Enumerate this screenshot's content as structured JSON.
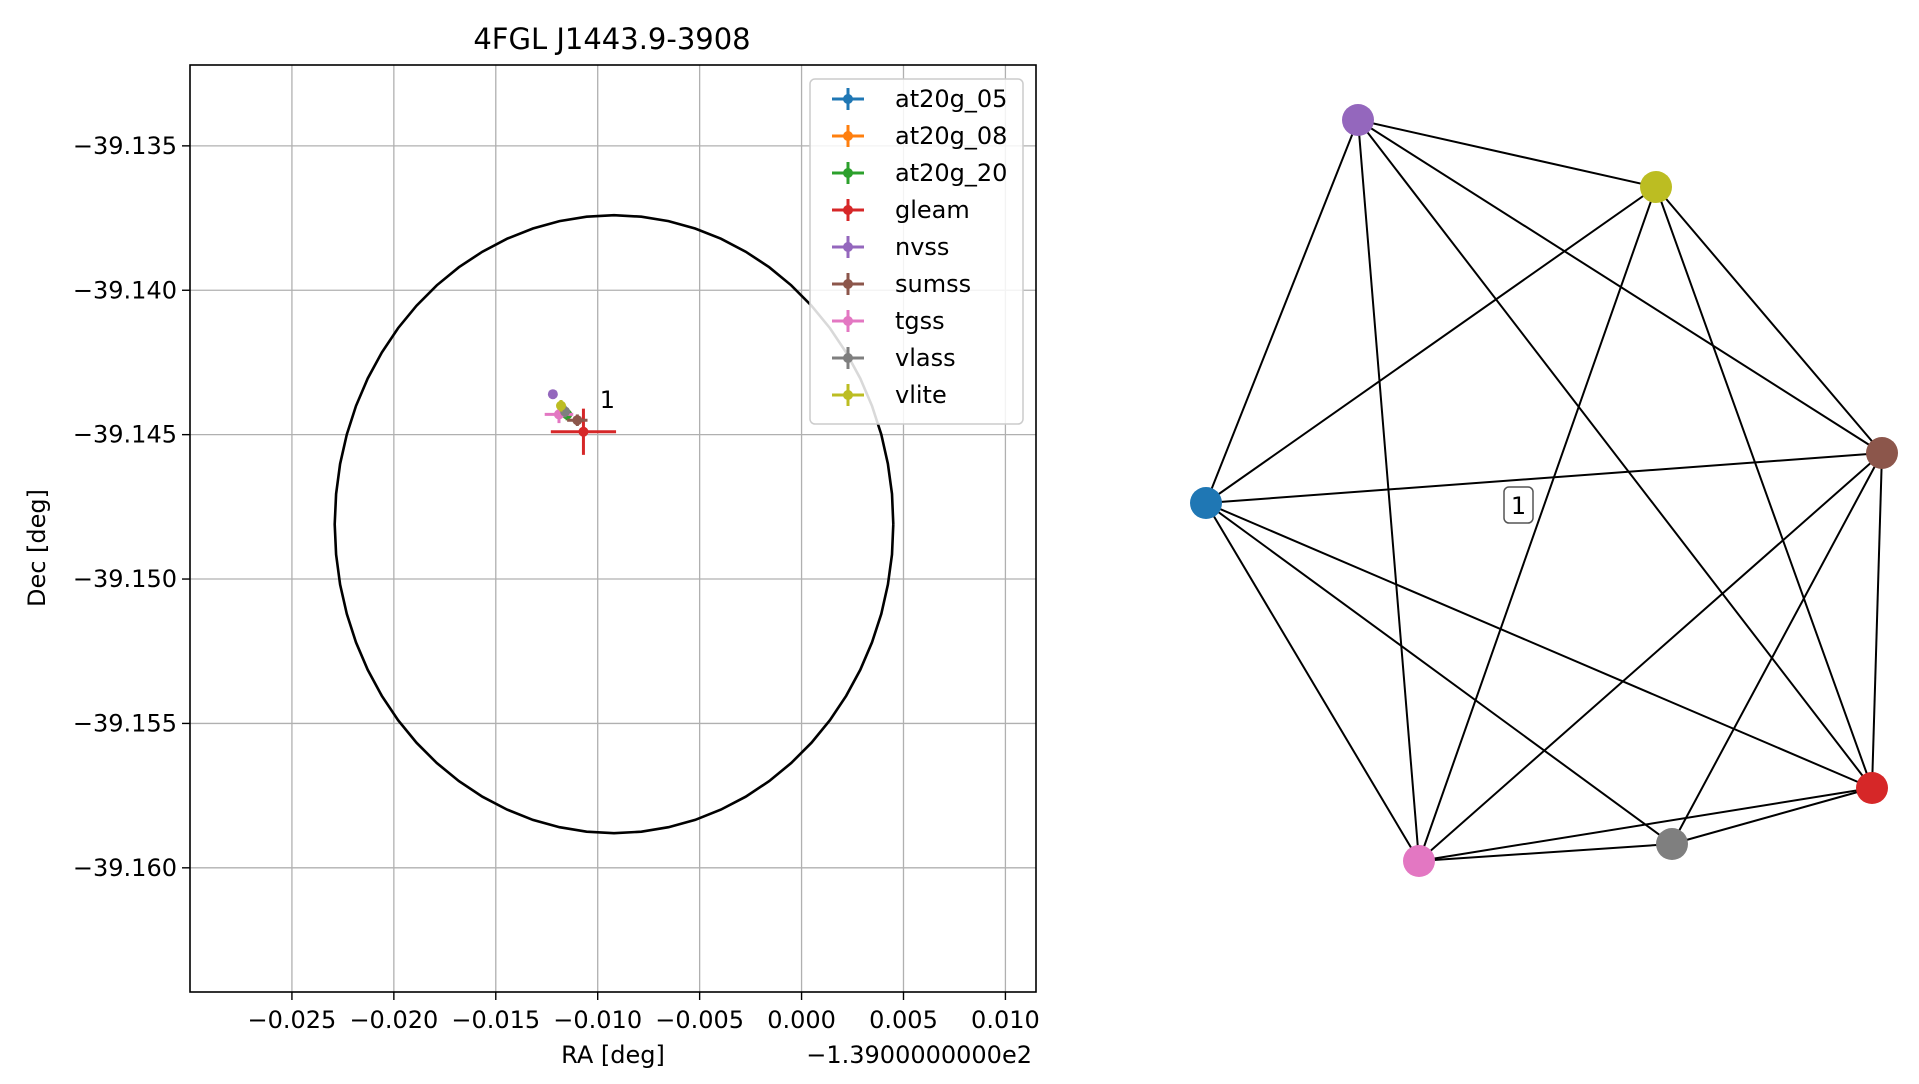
{
  "chart_data": [
    {
      "type": "scatter",
      "title": "4FGL J1443.9-3908",
      "xlabel": "RA [deg]",
      "ylabel": "Dec [deg]",
      "x_offset_label": "−1.3900000000e2",
      "xlim": [
        -0.03,
        0.0115
      ],
      "ylim": [
        -39.1643,
        -39.1322
      ],
      "x_ticks": [
        -0.025,
        -0.02,
        -0.015,
        -0.01,
        -0.005,
        0.0,
        0.005,
        0.01
      ],
      "x_tick_labels": [
        "−0.025",
        "−0.020",
        "−0.015",
        "−0.010",
        "−0.005",
        "0.000",
        "0.005",
        "0.010"
      ],
      "y_ticks": [
        -39.135,
        -39.14,
        -39.145,
        -39.15,
        -39.155,
        -39.16
      ],
      "y_tick_labels": [
        "−39.135",
        "−39.140",
        "−39.145",
        "−39.150",
        "−39.155",
        "−39.160"
      ],
      "grid": true,
      "legend_position": "top-right",
      "ellipse": {
        "center": [
          -0.0092,
          -39.1481
        ],
        "rx": 0.0137,
        "ry": 0.0107,
        "color": "#000000"
      },
      "cluster_label": {
        "text": "1",
        "x": -0.0099,
        "y": -39.1438
      },
      "series": [
        {
          "name": "at20g_05",
          "color": "#1f77b4",
          "x": -0.0115,
          "y": -39.1443,
          "xerr": 0.0002,
          "yerr": 0.0002
        },
        {
          "name": "at20g_08",
          "color": "#ff7f0e",
          "x": -0.0115,
          "y": -39.1443,
          "xerr": 0.0002,
          "yerr": 0.0002
        },
        {
          "name": "at20g_20",
          "color": "#2ca02c",
          "x": -0.0115,
          "y": -39.1443,
          "xerr": 0.0002,
          "yerr": 0.0002
        },
        {
          "name": "gleam",
          "color": "#d62728",
          "x": -0.0107,
          "y": -39.1449,
          "xerr": 0.0016,
          "yerr": 0.0008
        },
        {
          "name": "nvss",
          "color": "#9467bd",
          "x": -0.0122,
          "y": -39.1436,
          "xerr": 0.0001,
          "yerr": 0.0001
        },
        {
          "name": "sumss",
          "color": "#8c564b",
          "x": -0.011,
          "y": -39.1445,
          "xerr": 0.0005,
          "yerr": 0.0002
        },
        {
          "name": "tgss",
          "color": "#e377c2",
          "x": -0.0119,
          "y": -39.1443,
          "xerr": 0.0007,
          "yerr": 0.0003
        },
        {
          "name": "vlass",
          "color": "#7f7f7f",
          "x": -0.0116,
          "y": -39.1442,
          "xerr": 0.0002,
          "yerr": 0.0002
        },
        {
          "name": "vlite",
          "color": "#bcbd22",
          "x": -0.0118,
          "y": -39.144,
          "xerr": 0.0002,
          "yerr": 0.0002
        }
      ]
    },
    {
      "type": "diagram",
      "edge_label": "1",
      "node_colors": {
        "purple": "#9467bd",
        "olive": "#bcbd22",
        "brown": "#8c564b",
        "blue": "#1f77b4",
        "red": "#d62728",
        "gray": "#7f7f7f",
        "pink": "#e377c2"
      },
      "edges": [
        [
          "purple",
          "olive"
        ],
        [
          "purple",
          "blue"
        ],
        [
          "purple",
          "brown"
        ],
        [
          "purple",
          "red"
        ],
        [
          "purple",
          "pink"
        ],
        [
          "olive",
          "blue"
        ],
        [
          "olive",
          "red"
        ],
        [
          "olive",
          "pink"
        ],
        [
          "olive",
          "brown"
        ],
        [
          "blue",
          "brown"
        ],
        [
          "blue",
          "red"
        ],
        [
          "blue",
          "gray"
        ],
        [
          "blue",
          "pink"
        ],
        [
          "brown",
          "red"
        ],
        [
          "brown",
          "gray"
        ],
        [
          "brown",
          "pink"
        ],
        [
          "red",
          "gray"
        ],
        [
          "red",
          "pink"
        ],
        [
          "gray",
          "pink"
        ]
      ]
    }
  ]
}
